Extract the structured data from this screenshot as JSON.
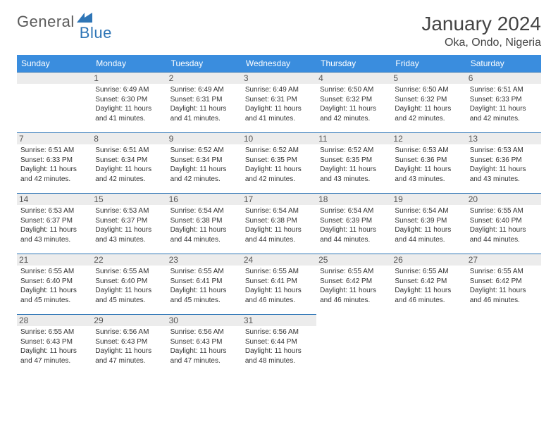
{
  "logo": {
    "text1": "General",
    "text2": "Blue"
  },
  "title": "January 2024",
  "location": "Oka, Ondo, Nigeria",
  "colors": {
    "header_bg": "#3a8dde",
    "header_text": "#ffffff",
    "border": "#2e75b6",
    "daynum_bg": "#ececec",
    "text": "#333333",
    "title_text": "#444444"
  },
  "weekdays": [
    "Sunday",
    "Monday",
    "Tuesday",
    "Wednesday",
    "Thursday",
    "Friday",
    "Saturday"
  ],
  "start_offset": 1,
  "days": [
    {
      "n": 1,
      "sunrise": "6:49 AM",
      "sunset": "6:30 PM",
      "daylight": "11 hours and 41 minutes."
    },
    {
      "n": 2,
      "sunrise": "6:49 AM",
      "sunset": "6:31 PM",
      "daylight": "11 hours and 41 minutes."
    },
    {
      "n": 3,
      "sunrise": "6:49 AM",
      "sunset": "6:31 PM",
      "daylight": "11 hours and 41 minutes."
    },
    {
      "n": 4,
      "sunrise": "6:50 AM",
      "sunset": "6:32 PM",
      "daylight": "11 hours and 42 minutes."
    },
    {
      "n": 5,
      "sunrise": "6:50 AM",
      "sunset": "6:32 PM",
      "daylight": "11 hours and 42 minutes."
    },
    {
      "n": 6,
      "sunrise": "6:51 AM",
      "sunset": "6:33 PM",
      "daylight": "11 hours and 42 minutes."
    },
    {
      "n": 7,
      "sunrise": "6:51 AM",
      "sunset": "6:33 PM",
      "daylight": "11 hours and 42 minutes."
    },
    {
      "n": 8,
      "sunrise": "6:51 AM",
      "sunset": "6:34 PM",
      "daylight": "11 hours and 42 minutes."
    },
    {
      "n": 9,
      "sunrise": "6:52 AM",
      "sunset": "6:34 PM",
      "daylight": "11 hours and 42 minutes."
    },
    {
      "n": 10,
      "sunrise": "6:52 AM",
      "sunset": "6:35 PM",
      "daylight": "11 hours and 42 minutes."
    },
    {
      "n": 11,
      "sunrise": "6:52 AM",
      "sunset": "6:35 PM",
      "daylight": "11 hours and 43 minutes."
    },
    {
      "n": 12,
      "sunrise": "6:53 AM",
      "sunset": "6:36 PM",
      "daylight": "11 hours and 43 minutes."
    },
    {
      "n": 13,
      "sunrise": "6:53 AM",
      "sunset": "6:36 PM",
      "daylight": "11 hours and 43 minutes."
    },
    {
      "n": 14,
      "sunrise": "6:53 AM",
      "sunset": "6:37 PM",
      "daylight": "11 hours and 43 minutes."
    },
    {
      "n": 15,
      "sunrise": "6:53 AM",
      "sunset": "6:37 PM",
      "daylight": "11 hours and 43 minutes."
    },
    {
      "n": 16,
      "sunrise": "6:54 AM",
      "sunset": "6:38 PM",
      "daylight": "11 hours and 44 minutes."
    },
    {
      "n": 17,
      "sunrise": "6:54 AM",
      "sunset": "6:38 PM",
      "daylight": "11 hours and 44 minutes."
    },
    {
      "n": 18,
      "sunrise": "6:54 AM",
      "sunset": "6:39 PM",
      "daylight": "11 hours and 44 minutes."
    },
    {
      "n": 19,
      "sunrise": "6:54 AM",
      "sunset": "6:39 PM",
      "daylight": "11 hours and 44 minutes."
    },
    {
      "n": 20,
      "sunrise": "6:55 AM",
      "sunset": "6:40 PM",
      "daylight": "11 hours and 44 minutes."
    },
    {
      "n": 21,
      "sunrise": "6:55 AM",
      "sunset": "6:40 PM",
      "daylight": "11 hours and 45 minutes."
    },
    {
      "n": 22,
      "sunrise": "6:55 AM",
      "sunset": "6:40 PM",
      "daylight": "11 hours and 45 minutes."
    },
    {
      "n": 23,
      "sunrise": "6:55 AM",
      "sunset": "6:41 PM",
      "daylight": "11 hours and 45 minutes."
    },
    {
      "n": 24,
      "sunrise": "6:55 AM",
      "sunset": "6:41 PM",
      "daylight": "11 hours and 46 minutes."
    },
    {
      "n": 25,
      "sunrise": "6:55 AM",
      "sunset": "6:42 PM",
      "daylight": "11 hours and 46 minutes."
    },
    {
      "n": 26,
      "sunrise": "6:55 AM",
      "sunset": "6:42 PM",
      "daylight": "11 hours and 46 minutes."
    },
    {
      "n": 27,
      "sunrise": "6:55 AM",
      "sunset": "6:42 PM",
      "daylight": "11 hours and 46 minutes."
    },
    {
      "n": 28,
      "sunrise": "6:55 AM",
      "sunset": "6:43 PM",
      "daylight": "11 hours and 47 minutes."
    },
    {
      "n": 29,
      "sunrise": "6:56 AM",
      "sunset": "6:43 PM",
      "daylight": "11 hours and 47 minutes."
    },
    {
      "n": 30,
      "sunrise": "6:56 AM",
      "sunset": "6:43 PM",
      "daylight": "11 hours and 47 minutes."
    },
    {
      "n": 31,
      "sunrise": "6:56 AM",
      "sunset": "6:44 PM",
      "daylight": "11 hours and 48 minutes."
    }
  ],
  "labels": {
    "sunrise": "Sunrise:",
    "sunset": "Sunset:",
    "daylight": "Daylight:"
  }
}
